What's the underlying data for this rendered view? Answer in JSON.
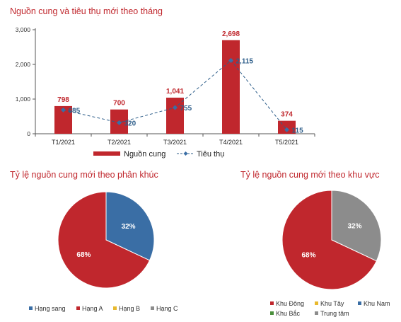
{
  "titles": {
    "main": "Nguồn cung và tiêu thụ mới theo tháng",
    "segment": "Tỷ lệ nguồn cung mới theo phân khúc",
    "region": "Tỷ lệ nguồn cung mới theo khu vực"
  },
  "colors": {
    "red": "#c0272d",
    "blue": "#3a6ea5",
    "gray": "#8c8c8c",
    "gold": "#e8b92e",
    "green": "#4a8f3c",
    "navy": "#2e5e8a"
  },
  "chart_data": [
    {
      "type": "bar",
      "title": "Nguồn cung và tiêu thụ mới theo tháng",
      "categories": [
        "T1/2021",
        "T2/2021",
        "T3/2021",
        "T4/2021",
        "T5/2021"
      ],
      "ylim": [
        0,
        3000
      ],
      "yticks": [
        0,
        1000,
        2000,
        3000
      ],
      "ytick_labels": [
        "0",
        "1,000",
        "2,000",
        "3,000"
      ],
      "grid": false,
      "legend_position": "bottom",
      "series": [
        {
          "name": "Nguồn cung",
          "type": "bar",
          "values": [
            798,
            700,
            1041,
            2698,
            374
          ],
          "labels": [
            "798",
            "700",
            "1,041",
            "2,698",
            "374"
          ]
        },
        {
          "name": "Tiêu thụ",
          "type": "line",
          "style": "dashed",
          "marker": "diamond",
          "values": [
            685,
            320,
            755,
            2115,
            115
          ],
          "labels": [
            "685",
            "320",
            "755",
            "2,115",
            "115"
          ]
        }
      ]
    },
    {
      "type": "pie",
      "title": "Tỷ lệ nguồn cung mới theo phân khúc",
      "legend_position": "bottom",
      "legend": [
        "Hạng sang",
        "Hạng A",
        "Hạng B",
        "Hạng C"
      ],
      "legend_colors": [
        "#3a6ea5",
        "#c0272d",
        "#e8b92e",
        "#8c8c8c"
      ],
      "slices": [
        {
          "name": "Hạng A",
          "value": 68,
          "label": "68%",
          "color": "#c0272d"
        },
        {
          "name": "Hạng sang",
          "value": 32,
          "label": "32%",
          "color": "#3a6ea5"
        }
      ]
    },
    {
      "type": "pie",
      "title": "Tỷ lệ nguồn cung mới theo khu vực",
      "legend_position": "bottom",
      "legend": [
        "Khu Đông",
        "Khu Tây",
        "Khu Nam",
        "Khu Bắc",
        "Trung tâm"
      ],
      "legend_colors": [
        "#c0272d",
        "#e8b92e",
        "#3a6ea5",
        "#4a8f3c",
        "#8c8c8c"
      ],
      "slices": [
        {
          "name": "Khu Đông",
          "value": 68,
          "label": "68%",
          "color": "#c0272d"
        },
        {
          "name": "Trung tâm",
          "value": 32,
          "label": "32%",
          "color": "#8c8c8c"
        }
      ]
    }
  ]
}
